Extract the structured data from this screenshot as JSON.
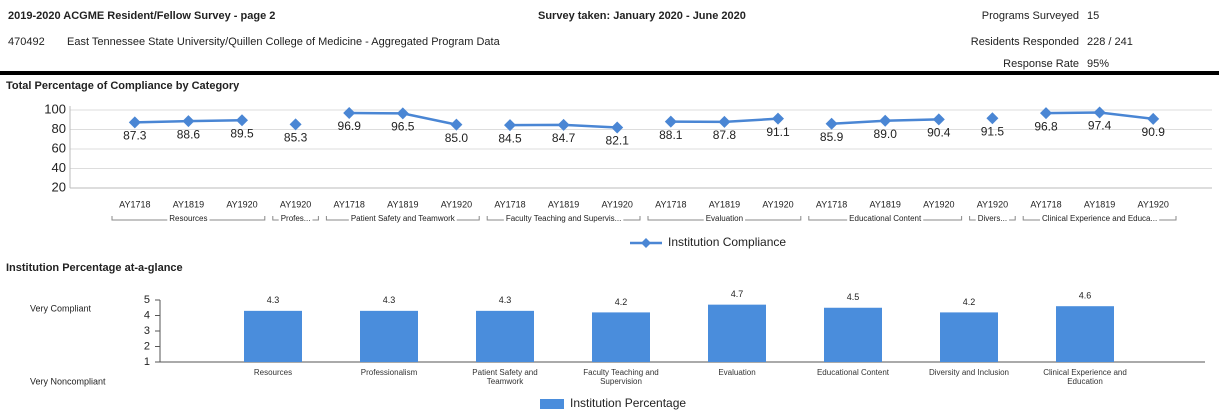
{
  "header": {
    "title": "2019-2020 ACGME Resident/Fellow Survey - page 2",
    "survey_period": "Survey taken: January 2020 - June 2020",
    "program_id": "470492",
    "program_name": "East Tennessee State University/Quillen College of Medicine - Aggregated Program Data",
    "stats": [
      {
        "label": "Programs Surveyed",
        "value": "15"
      },
      {
        "label": "Residents Responded",
        "value": "228 / 241"
      },
      {
        "label": "Response Rate",
        "value": "95%"
      }
    ]
  },
  "chart_data": [
    {
      "type": "line",
      "title": "Total Percentage of Compliance by Category",
      "groups": [
        {
          "label": "Resources",
          "categories": [
            "AY1718",
            "AY1819",
            "AY1920"
          ],
          "values": [
            87.3,
            88.6,
            89.5
          ],
          "value_labels": [
            "87.3",
            "88.6",
            "89.5"
          ]
        },
        {
          "label": "Profes...",
          "categories": [
            "AY1920"
          ],
          "values": [
            85.3
          ],
          "value_labels": [
            "85.3"
          ]
        },
        {
          "label": "Patient Safety and Teamwork",
          "categories": [
            "AY1718",
            "AY1819",
            "AY1920"
          ],
          "values": [
            96.9,
            96.5,
            85.0
          ],
          "value_labels": [
            "96.9",
            "96.5",
            "85.0"
          ]
        },
        {
          "label": "Faculty Teaching and Supervis...",
          "categories": [
            "AY1718",
            "AY1819",
            "AY1920"
          ],
          "values": [
            84.5,
            84.7,
            82.1
          ],
          "value_labels": [
            "84.5",
            "84.7",
            "82.1"
          ]
        },
        {
          "label": "Evaluation",
          "categories": [
            "AY1718",
            "AY1819",
            "AY1920"
          ],
          "values": [
            88.1,
            87.8,
            91.1
          ],
          "value_labels": [
            "88.1",
            "87.8",
            "91.1"
          ]
        },
        {
          "label": "Educational Content",
          "categories": [
            "AY1718",
            "AY1819",
            "AY1920"
          ],
          "values": [
            85.9,
            89.0,
            90.4
          ],
          "value_labels": [
            "85.9",
            "89.0",
            "90.4"
          ]
        },
        {
          "label": "Divers...",
          "categories": [
            "AY1920"
          ],
          "values": [
            91.5
          ],
          "value_labels": [
            "91.5"
          ]
        },
        {
          "label": "Clinical Experience and Educa...",
          "categories": [
            "AY1718",
            "AY1819",
            "AY1920"
          ],
          "values": [
            96.8,
            97.4,
            90.9
          ],
          "value_labels": [
            "96.8",
            "97.4",
            "90.9"
          ]
        }
      ],
      "legend": {
        "name": "Institution Compliance",
        "color": "#4a86d4"
      },
      "ylim": [
        20,
        100
      ],
      "yticks": [
        20,
        40,
        60,
        80,
        100
      ],
      "grid": true
    },
    {
      "type": "bar",
      "title": "Institution Percentage at-a-glance",
      "categories": [
        "Resources",
        "Professionalism",
        "Patient Safety and Teamwork",
        "Faculty Teaching and Supervision",
        "Evaluation",
        "Educational Content",
        "Diversity and Inclusion",
        "Clinical Experience and Education"
      ],
      "series": [
        {
          "name": "Institution Percentage",
          "color": "#4a8ddc",
          "values": [
            4.3,
            4.3,
            4.3,
            4.2,
            4.7,
            4.5,
            4.2,
            4.6
          ]
        }
      ],
      "ylim": [
        1,
        5
      ],
      "yticks": [
        1,
        2,
        3,
        4,
        5
      ],
      "y_top_label": "Very Compliant",
      "y_bottom_label": "Very Noncompliant"
    }
  ]
}
